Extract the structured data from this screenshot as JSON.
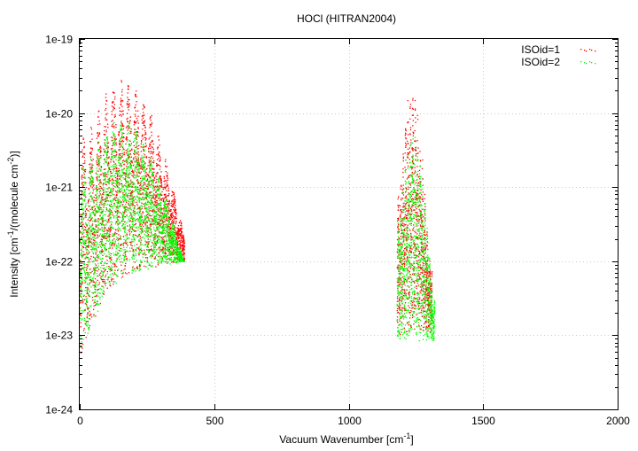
{
  "chart_data": {
    "type": "scatter",
    "title": "HOCl (HITRAN2004)",
    "xlabel": "Vacuum Wavenumber [cm",
    "xlabel_sup": "-1",
    "xlabel_end": "]",
    "ylabel_parts": [
      "Intensity [cm",
      "-1",
      "/(molecule cm",
      "-2",
      ")]"
    ],
    "xlim": [
      0,
      2000
    ],
    "ylim": [
      1e-24,
      1e-19
    ],
    "yscale": "log",
    "grid": true,
    "legend_position": "top-right",
    "x_ticks": [
      "0",
      "500",
      "1000",
      "1500",
      "2000"
    ],
    "y_ticks": [
      "1e-24",
      "1e-23",
      "1e-22",
      "1e-21",
      "1e-20",
      "1e-19"
    ],
    "series": [
      {
        "name": "ISOid=1",
        "color": "#ff0000",
        "bands": [
          {
            "x_range": [
              0,
              390
            ],
            "envelope_points": [
              [
                30,
                5e-21
              ],
              [
                80,
                1.5e-20
              ],
              [
                140,
                3e-20
              ],
              [
                200,
                2.5e-20
              ],
              [
                260,
                1.2e-20
              ],
              [
                330,
                2e-21
              ],
              [
                385,
                2.5e-22
              ]
            ],
            "floor_points": [
              [
                5,
                5e-24
              ],
              [
                30,
                1e-23
              ],
              [
                100,
                4e-23
              ],
              [
                200,
                7e-23
              ],
              [
                300,
                8.5e-23
              ],
              [
                390,
                1e-22
              ]
            ]
          },
          {
            "x_range": [
              1180,
              1310
            ],
            "envelope_points": [
              [
                1190,
                1e-21
              ],
              [
                1220,
                1.8e-20
              ],
              [
                1245,
                1.8e-20
              ],
              [
                1270,
                5e-21
              ],
              [
                1300,
                1e-22
              ]
            ],
            "floor_points": [
              [
                1190,
                1e-23
              ],
              [
                1300,
                1e-23
              ]
            ]
          }
        ]
      },
      {
        "name": "ISOid=2",
        "color": "#00ff00",
        "bands": [
          {
            "x_range": [
              0,
              390
            ],
            "envelope_points": [
              [
                30,
                2e-21
              ],
              [
                80,
                5e-21
              ],
              [
                140,
                1e-20
              ],
              [
                200,
                8e-21
              ],
              [
                260,
                3e-21
              ],
              [
                330,
                6e-22
              ],
              [
                385,
                1e-22
              ]
            ],
            "floor_points": [
              [
                5,
                5e-24
              ],
              [
                30,
                1e-23
              ],
              [
                100,
                4e-23
              ],
              [
                200,
                7e-23
              ],
              [
                300,
                8.5e-23
              ],
              [
                390,
                1e-22
              ]
            ]
          },
          {
            "x_range": [
              1180,
              1320
            ],
            "envelope_points": [
              [
                1190,
                4e-22
              ],
              [
                1220,
                5e-21
              ],
              [
                1250,
                5.5e-21
              ],
              [
                1280,
                1e-21
              ],
              [
                1315,
                3e-23
              ]
            ],
            "floor_points": [
              [
                1185,
                8e-24
              ],
              [
                1315,
                8e-24
              ]
            ]
          }
        ]
      }
    ]
  }
}
